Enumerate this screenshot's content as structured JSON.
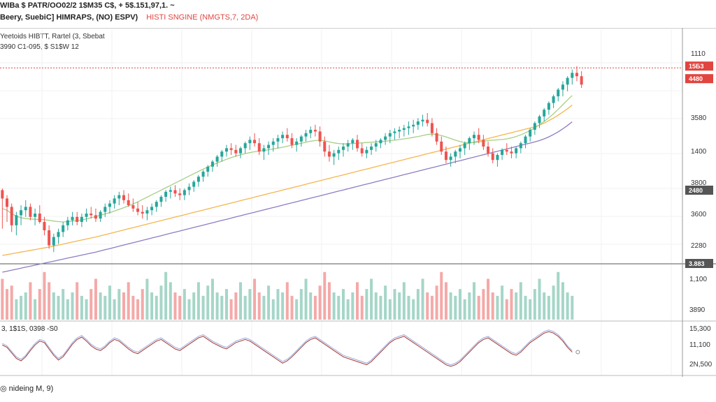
{
  "header": {
    "line1": "WIBa $ PATR/OO02/2 1$M35 C$, + 5$.151,97,1. ~",
    "line2": "Beery, SuebiC] HIMRAPS, (NO) ESPV)",
    "line2_red": "HISTI SNGINE (NMGTS,7, 2DA)",
    "line3": "Yeetoids HIBTT, Rartel (3, Sbebat",
    "line4": "3990 C1-095, $ S1$W 12"
  },
  "oscillator": {
    "label": "3, 1$1S, 0398 -S0"
  },
  "footer": {
    "label": "◎ nideing M, 9)"
  },
  "colors": {
    "up": "#26a69a",
    "down": "#ef5350",
    "vol_up": "#a5d6c8",
    "vol_down": "#f4a9a8",
    "ma_fast": "#a6cf86",
    "ma_mid": "#f6b54c",
    "ma_slow": "#8e7cc3",
    "price_line": "#e0453f"
  },
  "axis_labels": {
    "price": [
      "1110",
      "3580",
      "1400",
      "3800",
      "3600",
      "2280"
    ],
    "badges": [
      "15Б3",
      "4480",
      "2480",
      "3.883"
    ],
    "volume": [
      "1,100",
      "3890"
    ],
    "oscillator": [
      "15,300",
      "11,100",
      "2N,500"
    ]
  },
  "chart_data": {
    "type": "candlestick",
    "candles": [
      [
        2090,
        2100,
        1860,
        2040
      ],
      [
        2040,
        2060,
        1900,
        1990
      ],
      [
        1990,
        2010,
        1840,
        1880
      ],
      [
        1880,
        1960,
        1820,
        1940
      ],
      [
        1940,
        2000,
        1880,
        1970
      ],
      [
        1970,
        2030,
        1930,
        1990
      ],
      [
        1990,
        2010,
        1910,
        1930
      ],
      [
        1930,
        1980,
        1880,
        1950
      ],
      [
        1950,
        2000,
        1890,
        1900
      ],
      [
        1900,
        1930,
        1820,
        1850
      ],
      [
        1850,
        1880,
        1740,
        1760
      ],
      [
        1760,
        1830,
        1720,
        1810
      ],
      [
        1810,
        1860,
        1770,
        1840
      ],
      [
        1840,
        1900,
        1810,
        1880
      ],
      [
        1880,
        1930,
        1850,
        1910
      ],
      [
        1910,
        1960,
        1880,
        1930
      ],
      [
        1930,
        1960,
        1880,
        1900
      ],
      [
        1900,
        1950,
        1870,
        1930
      ],
      [
        1930,
        1980,
        1900,
        1950
      ],
      [
        1950,
        1990,
        1920,
        1940
      ],
      [
        1940,
        1980,
        1900,
        1920
      ],
      [
        1920,
        1970,
        1900,
        1960
      ],
      [
        1960,
        2010,
        1930,
        1990
      ],
      [
        1990,
        2030,
        1950,
        2010
      ],
      [
        2010,
        2060,
        1980,
        2040
      ],
      [
        2040,
        2080,
        2000,
        2060
      ],
      [
        2060,
        2090,
        2010,
        2030
      ],
      [
        2030,
        2070,
        1990,
        2000
      ],
      [
        2000,
        2040,
        1960,
        1980
      ],
      [
        1980,
        2020,
        1940,
        1960
      ],
      [
        1960,
        2000,
        1920,
        1950
      ],
      [
        1950,
        1990,
        1910,
        1970
      ],
      [
        1970,
        2010,
        1940,
        1990
      ],
      [
        1990,
        2030,
        1960,
        2020
      ],
      [
        2020,
        2060,
        1990,
        2050
      ],
      [
        2050,
        2090,
        2020,
        2080
      ],
      [
        2080,
        2110,
        2040,
        2090
      ],
      [
        2090,
        2120,
        2050,
        2070
      ],
      [
        2070,
        2100,
        2030,
        2060
      ],
      [
        2060,
        2100,
        2030,
        2090
      ],
      [
        2090,
        2130,
        2060,
        2110
      ],
      [
        2110,
        2150,
        2080,
        2140
      ],
      [
        2140,
        2180,
        2110,
        2170
      ],
      [
        2170,
        2210,
        2140,
        2200
      ],
      [
        2200,
        2240,
        2170,
        2230
      ],
      [
        2230,
        2270,
        2200,
        2260
      ],
      [
        2260,
        2300,
        2230,
        2290
      ],
      [
        2290,
        2330,
        2260,
        2320
      ],
      [
        2320,
        2360,
        2290,
        2340
      ],
      [
        2340,
        2370,
        2300,
        2330
      ],
      [
        2330,
        2360,
        2290,
        2310
      ],
      [
        2310,
        2350,
        2280,
        2340
      ],
      [
        2340,
        2380,
        2310,
        2370
      ],
      [
        2370,
        2410,
        2330,
        2390
      ],
      [
        2390,
        2430,
        2350,
        2370
      ],
      [
        2370,
        2400,
        2300,
        2320
      ],
      [
        2320,
        2360,
        2270,
        2340
      ],
      [
        2340,
        2380,
        2300,
        2360
      ],
      [
        2360,
        2400,
        2320,
        2380
      ],
      [
        2380,
        2420,
        2340,
        2400
      ],
      [
        2400,
        2440,
        2370,
        2420
      ],
      [
        2420,
        2460,
        2380,
        2400
      ],
      [
        2400,
        2430,
        2340,
        2360
      ],
      [
        2360,
        2400,
        2320,
        2380
      ],
      [
        2380,
        2420,
        2350,
        2410
      ],
      [
        2410,
        2450,
        2380,
        2430
      ],
      [
        2430,
        2470,
        2400,
        2450
      ],
      [
        2450,
        2480,
        2410,
        2440
      ],
      [
        2440,
        2470,
        2350,
        2380
      ],
      [
        2380,
        2410,
        2290,
        2320
      ],
      [
        2320,
        2360,
        2260,
        2290
      ],
      [
        2290,
        2330,
        2240,
        2310
      ],
      [
        2310,
        2350,
        2270,
        2330
      ],
      [
        2330,
        2370,
        2290,
        2350
      ],
      [
        2350,
        2390,
        2320,
        2370
      ],
      [
        2370,
        2400,
        2330,
        2390
      ],
      [
        2390,
        2420,
        2320,
        2340
      ],
      [
        2340,
        2370,
        2290,
        2310
      ],
      [
        2310,
        2350,
        2280,
        2330
      ],
      [
        2330,
        2370,
        2300,
        2350
      ],
      [
        2350,
        2390,
        2320,
        2370
      ],
      [
        2370,
        2400,
        2340,
        2390
      ],
      [
        2390,
        2430,
        2360,
        2410
      ],
      [
        2410,
        2450,
        2370,
        2430
      ],
      [
        2430,
        2460,
        2390,
        2440
      ],
      [
        2440,
        2470,
        2400,
        2450
      ],
      [
        2450,
        2480,
        2410,
        2460
      ],
      [
        2460,
        2500,
        2420,
        2470
      ],
      [
        2470,
        2510,
        2430,
        2480
      ],
      [
        2480,
        2520,
        2450,
        2500
      ],
      [
        2500,
        2540,
        2470,
        2510
      ],
      [
        2510,
        2550,
        2470,
        2490
      ],
      [
        2490,
        2520,
        2410,
        2430
      ],
      [
        2430,
        2460,
        2360,
        2380
      ],
      [
        2380,
        2410,
        2300,
        2320
      ],
      [
        2320,
        2350,
        2250,
        2270
      ],
      [
        2270,
        2310,
        2230,
        2290
      ],
      [
        2290,
        2330,
        2250,
        2320
      ],
      [
        2320,
        2360,
        2280,
        2340
      ],
      [
        2340,
        2380,
        2300,
        2370
      ],
      [
        2370,
        2410,
        2330,
        2400
      ],
      [
        2400,
        2440,
        2360,
        2420
      ],
      [
        2420,
        2460,
        2370,
        2390
      ],
      [
        2390,
        2420,
        2330,
        2350
      ],
      [
        2350,
        2380,
        2290,
        2310
      ],
      [
        2310,
        2340,
        2250,
        2270
      ],
      [
        2270,
        2310,
        2230,
        2300
      ],
      [
        2300,
        2340,
        2270,
        2330
      ],
      [
        2330,
        2370,
        2300,
        2320
      ],
      [
        2320,
        2350,
        2280,
        2310
      ],
      [
        2310,
        2350,
        2280,
        2340
      ],
      [
        2340,
        2380,
        2310,
        2370
      ],
      [
        2370,
        2420,
        2340,
        2410
      ],
      [
        2410,
        2460,
        2380,
        2450
      ],
      [
        2450,
        2500,
        2420,
        2490
      ],
      [
        2490,
        2540,
        2460,
        2530
      ],
      [
        2530,
        2580,
        2500,
        2570
      ],
      [
        2570,
        2620,
        2540,
        2610
      ],
      [
        2610,
        2660,
        2580,
        2650
      ],
      [
        2650,
        2700,
        2620,
        2690
      ],
      [
        2690,
        2740,
        2650,
        2720
      ],
      [
        2720,
        2770,
        2680,
        2760
      ],
      [
        2760,
        2810,
        2720,
        2790
      ],
      [
        2790,
        2830,
        2740,
        2770
      ],
      [
        2770,
        2800,
        2700,
        2720
      ]
    ],
    "ma_fast": [
      1980,
      1970,
      1950,
      1935,
      1925,
      1920,
      1918,
      1916,
      1915,
      1913,
      1910,
      1905,
      1902,
      1900,
      1902,
      1905,
      1908,
      1912,
      1918,
      1925,
      1932,
      1940,
      1948,
      1956,
      1965,
      1975,
      1985,
      1996,
      2008,
      2020,
      2034,
      2048,
      2062,
      2076,
      2090,
      2104,
      2118,
      2132,
      2146,
      2160,
      2174,
      2188,
      2202,
      2215,
      2228,
      2240,
      2252,
      2263,
      2274,
      2284,
      2293,
      2301,
      2308,
      2314,
      2319,
      2323,
      2327,
      2331,
      2336,
      2341,
      2346,
      2352,
      2358,
      2364,
      2370,
      2376,
      2382,
      2386,
      2388,
      2384,
      2378,
      2372,
      2368,
      2366,
      2366,
      2368,
      2370,
      2372,
      2374,
      2376,
      2378,
      2380,
      2382,
      2385,
      2388,
      2392,
      2396,
      2400,
      2405,
      2410,
      2416,
      2422,
      2424,
      2422,
      2416,
      2408,
      2398,
      2388,
      2380,
      2374,
      2372,
      2374,
      2378,
      2382,
      2386,
      2388,
      2390,
      2392,
      2396,
      2402,
      2410,
      2420,
      2432,
      2446,
      2462,
      2480,
      2500,
      2522,
      2546,
      2572,
      2600,
      2628,
      2655
    ],
    "ma_mid": [
      1700,
      1705,
      1710,
      1715,
      1720,
      1725,
      1730,
      1735,
      1740,
      1745,
      1750,
      1756,
      1762,
      1768,
      1774,
      1780,
      1786,
      1792,
      1798,
      1804,
      1810,
      1817,
      1824,
      1831,
      1838,
      1845,
      1852,
      1859,
      1866,
      1873,
      1880,
      1887,
      1894,
      1901,
      1908,
      1915,
      1922,
      1929,
      1936,
      1943,
      1950,
      1957,
      1964,
      1971,
      1978,
      1985,
      1992,
      1999,
      2006,
      2013,
      2020,
      2027,
      2034,
      2041,
      2048,
      2055,
      2062,
      2069,
      2076,
      2083,
      2090,
      2097,
      2104,
      2111,
      2118,
      2125,
      2132,
      2139,
      2146,
      2153,
      2160,
      2167,
      2174,
      2181,
      2188,
      2195,
      2202,
      2209,
      2216,
      2223,
      2230,
      2237,
      2244,
      2251,
      2258,
      2265,
      2272,
      2279,
      2286,
      2293,
      2300,
      2307,
      2314,
      2321,
      2328,
      2335,
      2342,
      2349,
      2356,
      2363,
      2370,
      2377,
      2384,
      2391,
      2398,
      2405,
      2412,
      2419,
      2426,
      2433,
      2440,
      2447,
      2454,
      2461,
      2468,
      2478,
      2490,
      2505,
      2520,
      2538,
      2556,
      2576,
      2598
    ],
    "ma_slow": [
      1600,
      1606,
      1612,
      1618,
      1624,
      1630,
      1636,
      1642,
      1648,
      1654,
      1660,
      1666,
      1672,
      1678,
      1684,
      1690,
      1696,
      1702,
      1708,
      1714,
      1720,
      1727,
      1734,
      1741,
      1748,
      1755,
      1762,
      1769,
      1776,
      1783,
      1790,
      1797,
      1804,
      1811,
      1818,
      1825,
      1832,
      1839,
      1846,
      1853,
      1860,
      1867,
      1874,
      1881,
      1888,
      1895,
      1902,
      1909,
      1916,
      1923,
      1930,
      1937,
      1944,
      1951,
      1958,
      1965,
      1972,
      1979,
      1986,
      1993,
      2000,
      2007,
      2014,
      2021,
      2028,
      2035,
      2042,
      2049,
      2056,
      2063,
      2070,
      2077,
      2084,
      2091,
      2098,
      2105,
      2112,
      2119,
      2126,
      2133,
      2140,
      2147,
      2154,
      2161,
      2168,
      2175,
      2182,
      2189,
      2196,
      2203,
      2210,
      2217,
      2224,
      2231,
      2238,
      2245,
      2252,
      2259,
      2266,
      2273,
      2280,
      2287,
      2294,
      2301,
      2308,
      2315,
      2322,
      2329,
      2336,
      2343,
      2350,
      2357,
      2364,
      2371,
      2378,
      2386,
      2396,
      2408,
      2422,
      2438,
      2456,
      2476,
      2498
    ],
    "volume": [
      60,
      45,
      50,
      30,
      35,
      40,
      55,
      30,
      45,
      70,
      55,
      40,
      35,
      45,
      30,
      40,
      55,
      35,
      30,
      45,
      60,
      40,
      35,
      50,
      30,
      45,
      40,
      55,
      35,
      30,
      45,
      60,
      40,
      35,
      50,
      70,
      55,
      40,
      35,
      45,
      30,
      40,
      55,
      35,
      50,
      60,
      40,
      35,
      45,
      30,
      40,
      55,
      35,
      45,
      60,
      40,
      35,
      50,
      30,
      45,
      40,
      55,
      35,
      30,
      45,
      60,
      40,
      35,
      50,
      70,
      55,
      40,
      35,
      45,
      30,
      40,
      55,
      35,
      45,
      60,
      40,
      35,
      50,
      30,
      45,
      40,
      55,
      35,
      30,
      45,
      60,
      40,
      35,
      50,
      70,
      55,
      40,
      35,
      45,
      30,
      40,
      55,
      35,
      45,
      60,
      40,
      35,
      50,
      30,
      45,
      40,
      55,
      35,
      30,
      45,
      60,
      40,
      35,
      50,
      70,
      55,
      40,
      35
    ],
    "oscillator": [
      55,
      52,
      45,
      38,
      35,
      40,
      48,
      55,
      60,
      58,
      50,
      42,
      36,
      40,
      48,
      56,
      62,
      65,
      60,
      54,
      50,
      48,
      52,
      58,
      62,
      60,
      55,
      50,
      46,
      44,
      48,
      52,
      56,
      60,
      62,
      58,
      54,
      50,
      48,
      52,
      56,
      60,
      64,
      66,
      62,
      58,
      55,
      52,
      50,
      54,
      58,
      60,
      62,
      60,
      56,
      52,
      48,
      44,
      40,
      36,
      32,
      35,
      40,
      46,
      52,
      58,
      62,
      64,
      60,
      56,
      52,
      48,
      44,
      40,
      38,
      36,
      34,
      32,
      30,
      34,
      40,
      46,
      52,
      58,
      62,
      64,
      66,
      62,
      58,
      54,
      50,
      46,
      42,
      38,
      34,
      30,
      28,
      30,
      34,
      40,
      46,
      52,
      58,
      62,
      64,
      60,
      56,
      52,
      48,
      44,
      42,
      46,
      52,
      58,
      62,
      66,
      70,
      72,
      70,
      66,
      60,
      52,
      46
    ],
    "price_level": 2820,
    "ylim": [
      1650,
      3050
    ],
    "vol_max": 80,
    "osc_range": [
      20,
      80
    ]
  }
}
